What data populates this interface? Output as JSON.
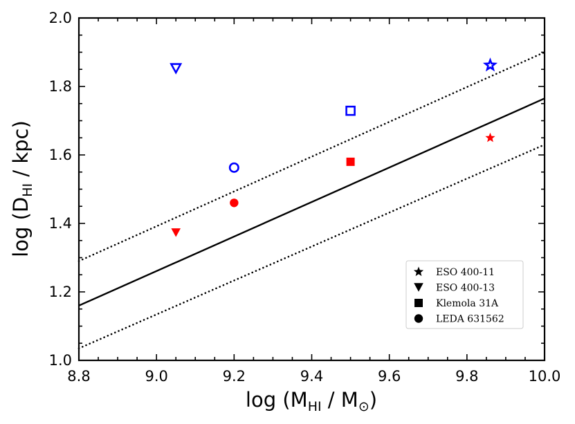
{
  "chart_data": {
    "type": "scatter",
    "xlabel": {
      "prefix": "log (M",
      "sub1": "HI",
      "mid": " / M",
      "sub2": "⊙",
      "suffix": ")"
    },
    "ylabel": {
      "prefix": "log (D",
      "sub": "HI",
      "suffix": " / kpc)"
    },
    "xlim": [
      8.8,
      10.0
    ],
    "ylim": [
      1.0,
      2.0
    ],
    "xticks": [
      "8.8",
      "9.0",
      "9.2",
      "9.4",
      "9.6",
      "9.8",
      "10.0"
    ],
    "yticks": [
      "1.0",
      "1.2",
      "1.4",
      "1.6",
      "1.8",
      "2.0"
    ],
    "lines": [
      {
        "name": "relation",
        "style": "solid",
        "x": [
          8.8,
          10.0
        ],
        "y": [
          1.16,
          1.765
        ]
      },
      {
        "name": "upper-scatter",
        "style": "dotted",
        "x": [
          8.8,
          10.0
        ],
        "y": [
          1.29,
          1.9
        ]
      },
      {
        "name": "lower-scatter",
        "style": "dotted",
        "x": [
          8.8,
          10.0
        ],
        "y": [
          1.035,
          1.63
        ]
      }
    ],
    "points": [
      {
        "name": "eso-400-11-blue",
        "galaxy": "ESO 400-11",
        "marker": "star",
        "color": "#0000ff",
        "fill": "open",
        "x": 9.86,
        "y": 1.862
      },
      {
        "name": "eso-400-11-red",
        "galaxy": "ESO 400-11",
        "marker": "star",
        "color": "#ff0000",
        "fill": "filled",
        "x": 9.86,
        "y": 1.65
      },
      {
        "name": "eso-400-13-blue",
        "galaxy": "ESO 400-13",
        "marker": "triangle-down",
        "color": "#0000ff",
        "fill": "open",
        "x": 9.05,
        "y": 1.853
      },
      {
        "name": "eso-400-13-red",
        "galaxy": "ESO 400-13",
        "marker": "triangle-down",
        "color": "#ff0000",
        "fill": "filled",
        "x": 9.05,
        "y": 1.373
      },
      {
        "name": "klemola-31a-blue",
        "galaxy": "Klemola 31A",
        "marker": "square",
        "color": "#0000ff",
        "fill": "open",
        "x": 9.5,
        "y": 1.729
      },
      {
        "name": "klemola-31a-red",
        "galaxy": "Klemola 31A",
        "marker": "square",
        "color": "#ff0000",
        "fill": "filled",
        "x": 9.5,
        "y": 1.58
      },
      {
        "name": "leda-631562-blue",
        "galaxy": "LEDA 631562",
        "marker": "circle",
        "color": "#0000ff",
        "fill": "open",
        "x": 9.2,
        "y": 1.563
      },
      {
        "name": "leda-631562-red",
        "galaxy": "LEDA 631562",
        "marker": "circle",
        "color": "#ff0000",
        "fill": "filled",
        "x": 9.2,
        "y": 1.46
      }
    ],
    "legend": {
      "location": "lower-right",
      "entries": [
        {
          "label": "ESO 400-11",
          "marker": "star"
        },
        {
          "label": "ESO 400-13",
          "marker": "triangle-down"
        },
        {
          "label": "Klemola 31A",
          "marker": "square"
        },
        {
          "label": "LEDA 631562",
          "marker": "circle"
        }
      ]
    }
  }
}
